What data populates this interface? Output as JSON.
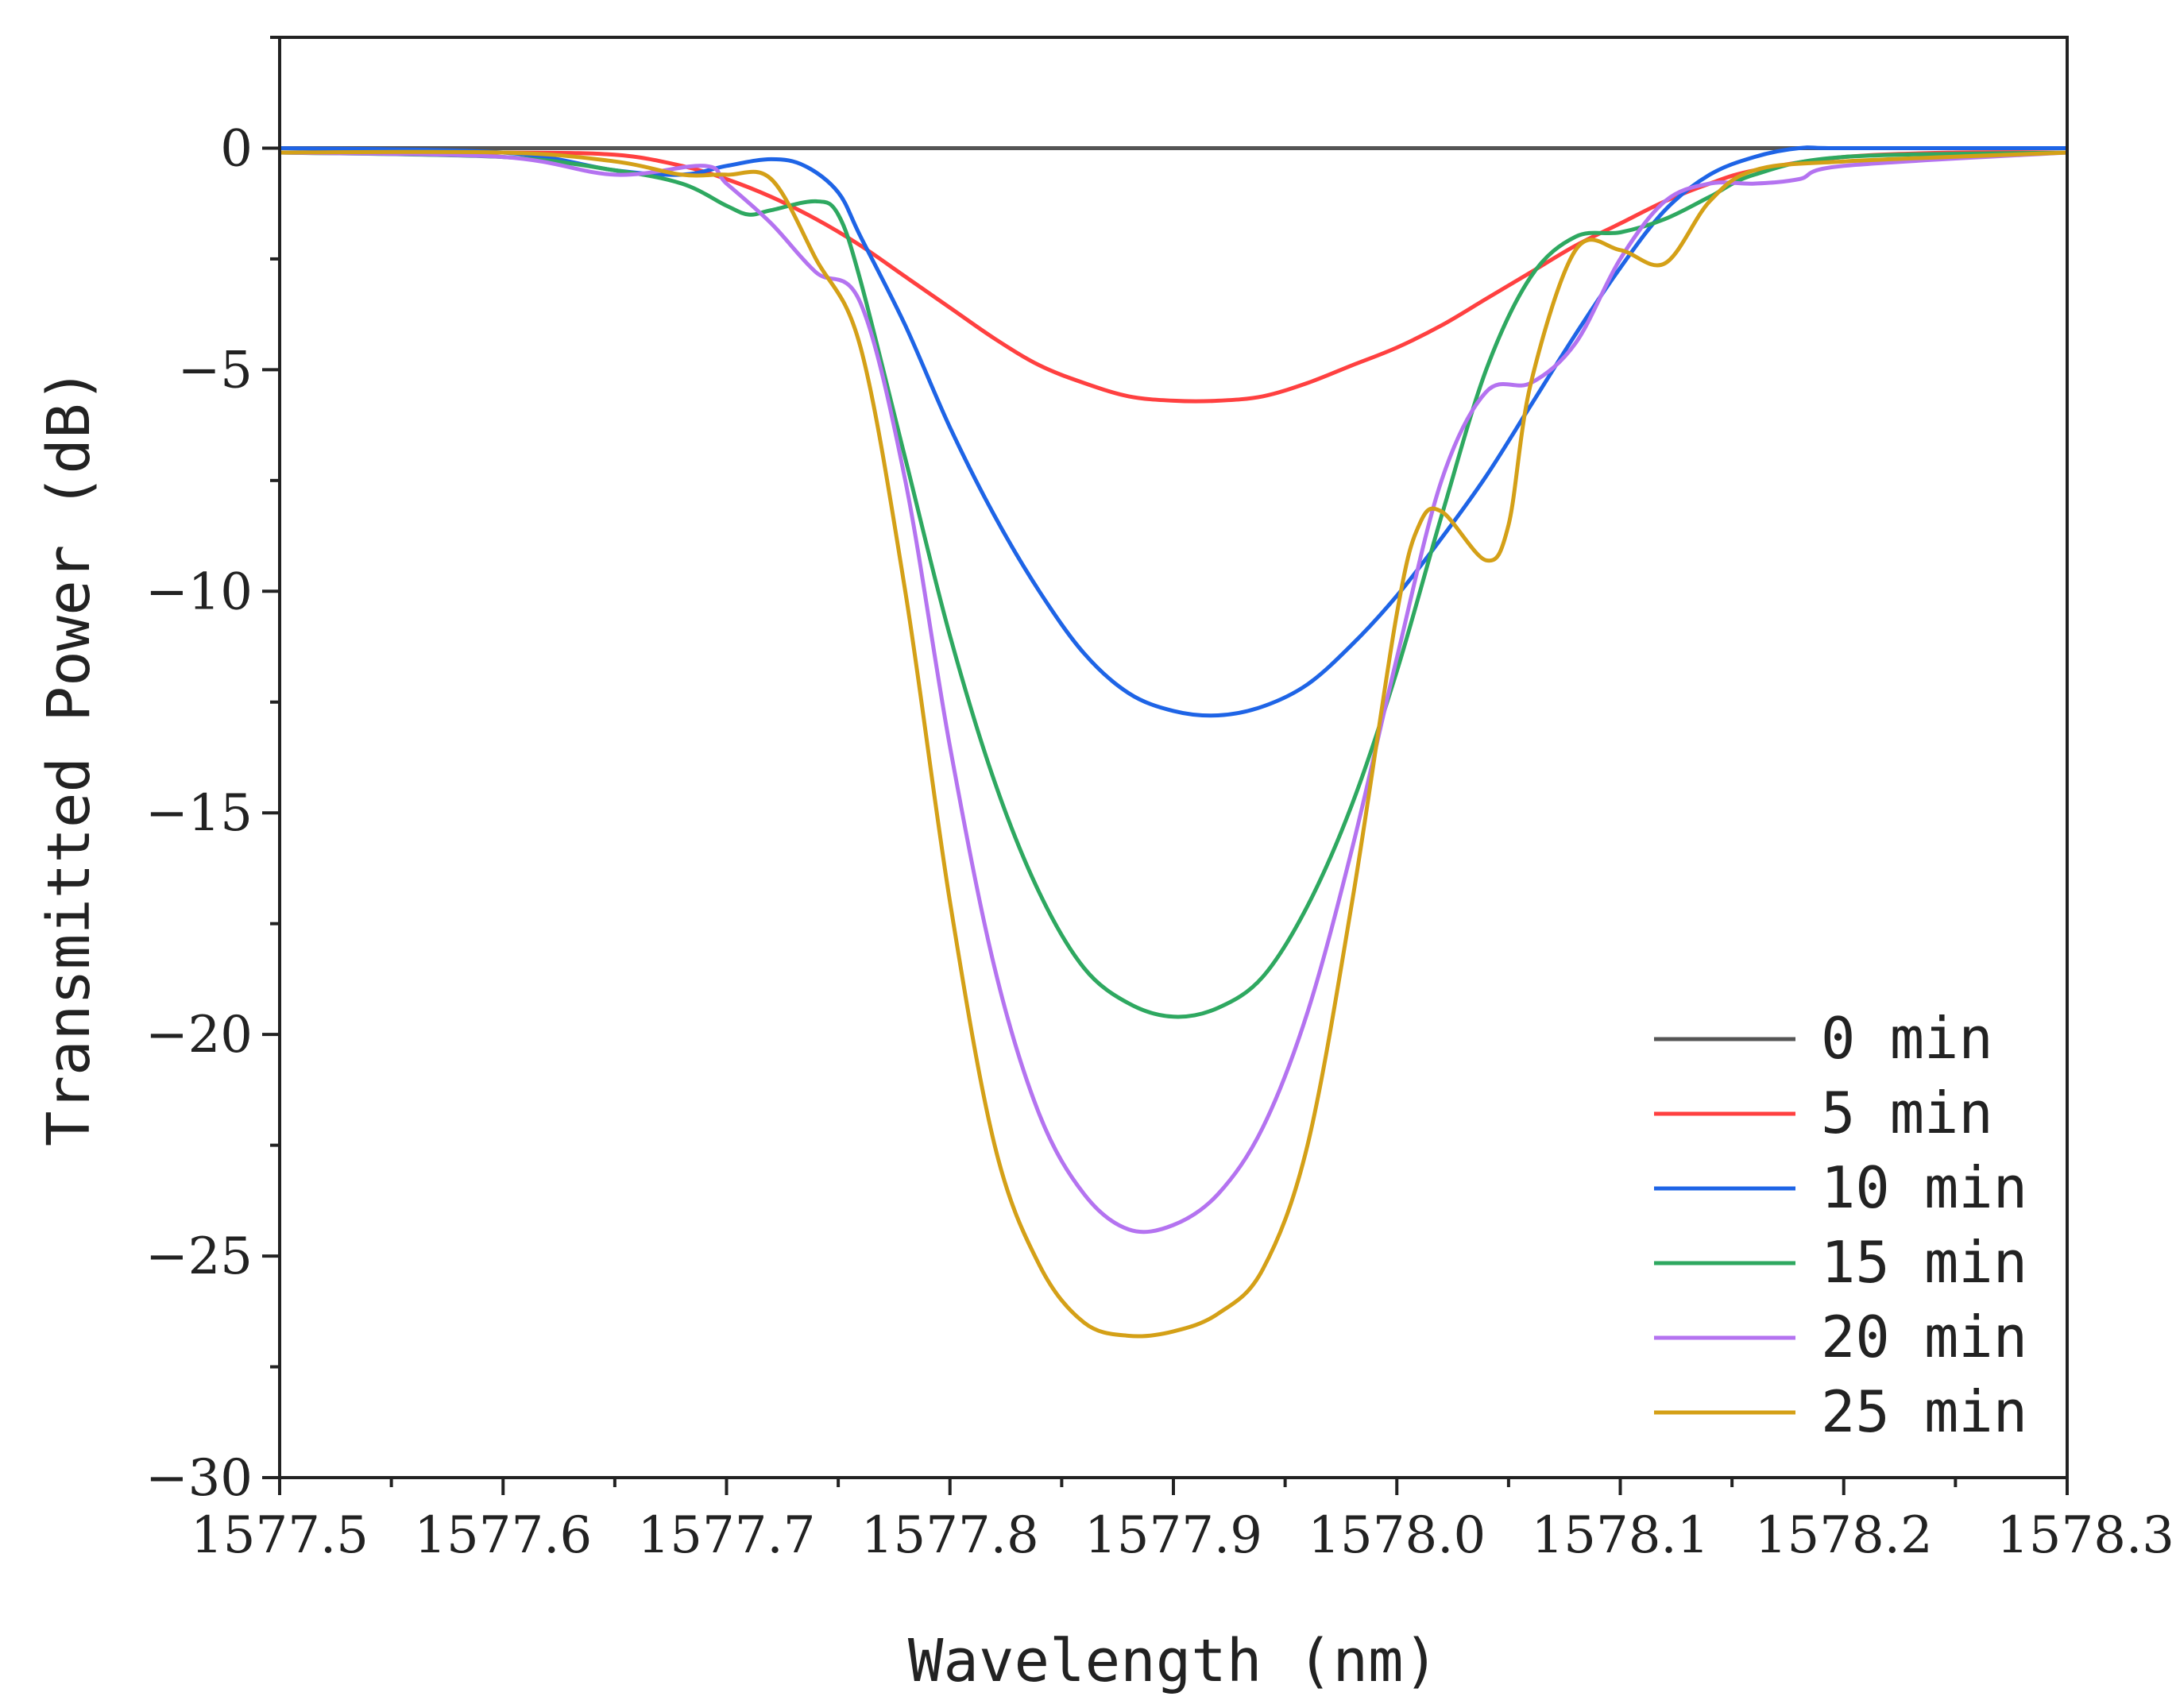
{
  "chart_data": {
    "type": "line",
    "title": "",
    "xlabel": "Wavelength (nm)",
    "ylabel": "Transmitted Power (dB)",
    "xlim": [
      1577.5,
      1578.3
    ],
    "ylim": [
      -30,
      2.5
    ],
    "grid": false,
    "legend_position": "bottom-right",
    "x_ticks": [
      1577.5,
      1577.6,
      1577.7,
      1577.8,
      1577.9,
      1578.0,
      1578.1,
      1578.2,
      1578.3
    ],
    "x_tick_labels": [
      "1577.5",
      "1577.6",
      "1577.7",
      "1577.8",
      "1577.9",
      "1578.0",
      "1578.1",
      "1578.2",
      "1578.3"
    ],
    "y_ticks": [
      0,
      -5,
      -10,
      -15,
      -20,
      -25,
      -30
    ],
    "y_tick_labels": [
      "0",
      "−5",
      "−10",
      "−15",
      "−20",
      "−25",
      "−30"
    ],
    "series": [
      {
        "name": "0 min",
        "label": "0 min",
        "color": "#555555",
        "x": [
          1577.5,
          1578.3
        ],
        "y": [
          0,
          0
        ]
      },
      {
        "name": "5 min",
        "label": "5 min",
        "color": "#ff4040",
        "x": [
          1577.5,
          1577.6,
          1577.65,
          1577.68,
          1577.7,
          1577.72,
          1577.74,
          1577.76,
          1577.78,
          1577.8,
          1577.82,
          1577.84,
          1577.86,
          1577.88,
          1577.9,
          1577.92,
          1577.94,
          1577.96,
          1577.98,
          1578.0,
          1578.02,
          1578.04,
          1578.06,
          1578.08,
          1578.1,
          1578.12,
          1578.14,
          1578.16,
          1578.2,
          1578.25,
          1578.3
        ],
        "y": [
          -0.1,
          -0.1,
          -0.15,
          -0.4,
          -0.7,
          -1.1,
          -1.6,
          -2.2,
          -2.9,
          -3.6,
          -4.3,
          -4.9,
          -5.3,
          -5.6,
          -5.7,
          -5.7,
          -5.6,
          -5.3,
          -4.9,
          -4.5,
          -4.0,
          -3.4,
          -2.8,
          -2.2,
          -1.7,
          -1.2,
          -0.8,
          -0.5,
          -0.2,
          -0.1,
          -0.1
        ]
      },
      {
        "name": "10 min",
        "label": "10 min",
        "color": "#1e64e6",
        "x": [
          1577.5,
          1577.6,
          1577.65,
          1577.68,
          1577.7,
          1577.72,
          1577.735,
          1577.75,
          1577.76,
          1577.78,
          1577.8,
          1577.82,
          1577.84,
          1577.86,
          1577.88,
          1577.9,
          1577.92,
          1577.94,
          1577.96,
          1577.98,
          1578.0,
          1578.02,
          1578.04,
          1578.06,
          1578.08,
          1578.1,
          1578.12,
          1578.14,
          1578.16,
          1578.18,
          1578.2,
          1578.3
        ],
        "y": [
          0,
          -0.1,
          -0.5,
          -0.6,
          -0.4,
          -0.25,
          -0.4,
          -1.0,
          -2.0,
          -4.0,
          -6.3,
          -8.3,
          -10.0,
          -11.4,
          -12.3,
          -12.7,
          -12.8,
          -12.6,
          -12.1,
          -11.2,
          -10.1,
          -8.8,
          -7.4,
          -5.8,
          -4.2,
          -2.7,
          -1.4,
          -0.6,
          -0.2,
          0,
          0,
          0
        ]
      },
      {
        "name": "15 min",
        "label": "15 min",
        "color": "#2ea860",
        "x": [
          1577.5,
          1577.6,
          1577.65,
          1577.68,
          1577.7,
          1577.71,
          1577.72,
          1577.74,
          1577.75,
          1577.76,
          1577.78,
          1577.8,
          1577.82,
          1577.84,
          1577.86,
          1577.88,
          1577.9,
          1577.92,
          1577.94,
          1577.96,
          1577.98,
          1578.0,
          1578.02,
          1578.04,
          1578.06,
          1578.08,
          1578.1,
          1578.12,
          1578.14,
          1578.16,
          1578.2,
          1578.3
        ],
        "y": [
          -0.1,
          -0.2,
          -0.5,
          -0.8,
          -1.3,
          -1.5,
          -1.4,
          -1.2,
          -1.5,
          -3.0,
          -7.0,
          -11.0,
          -14.3,
          -16.8,
          -18.5,
          -19.3,
          -19.6,
          -19.4,
          -18.7,
          -17.1,
          -14.8,
          -11.8,
          -8.3,
          -5.0,
          -2.9,
          -2.0,
          -1.9,
          -1.6,
          -1.1,
          -0.6,
          -0.2,
          -0.1
        ]
      },
      {
        "name": "20 min",
        "label": "20 min",
        "color": "#b473f0",
        "x": [
          1577.5,
          1577.6,
          1577.65,
          1577.69,
          1577.7,
          1577.72,
          1577.74,
          1577.76,
          1577.78,
          1577.8,
          1577.82,
          1577.84,
          1577.86,
          1577.88,
          1577.9,
          1577.92,
          1577.94,
          1577.96,
          1577.98,
          1578.0,
          1578.02,
          1578.04,
          1578.06,
          1578.08,
          1578.1,
          1578.12,
          1578.14,
          1578.16,
          1578.18,
          1578.2,
          1578.3
        ],
        "y": [
          -0.1,
          -0.2,
          -0.6,
          -0.4,
          -0.8,
          -1.7,
          -2.8,
          -3.5,
          -7.5,
          -13.5,
          -18.5,
          -21.8,
          -23.6,
          -24.4,
          -24.3,
          -23.6,
          -22.1,
          -19.5,
          -15.8,
          -11.5,
          -7.5,
          -5.5,
          -5.3,
          -4.4,
          -2.5,
          -1.2,
          -0.8,
          -0.8,
          -0.7,
          -0.4,
          -0.1
        ]
      },
      {
        "name": "25 min",
        "label": "25 min",
        "color": "#d4a017",
        "x": [
          1577.5,
          1577.6,
          1577.65,
          1577.68,
          1577.7,
          1577.72,
          1577.74,
          1577.76,
          1577.78,
          1577.8,
          1577.82,
          1577.84,
          1577.86,
          1577.88,
          1577.9,
          1577.92,
          1577.94,
          1577.96,
          1577.98,
          1578.0,
          1578.01,
          1578.02,
          1578.04,
          1578.05,
          1578.06,
          1578.08,
          1578.1,
          1578.12,
          1578.14,
          1578.16,
          1578.2,
          1578.3
        ],
        "y": [
          -0.1,
          -0.1,
          -0.3,
          -0.6,
          -0.6,
          -0.7,
          -2.5,
          -4.5,
          -10.0,
          -17.0,
          -22.5,
          -25.2,
          -26.5,
          -26.8,
          -26.7,
          -26.3,
          -25.3,
          -22.5,
          -17.0,
          -10.5,
          -8.5,
          -8.2,
          -9.3,
          -8.5,
          -5.3,
          -2.3,
          -2.3,
          -2.6,
          -1.2,
          -0.5,
          -0.3,
          -0.1
        ]
      }
    ]
  }
}
